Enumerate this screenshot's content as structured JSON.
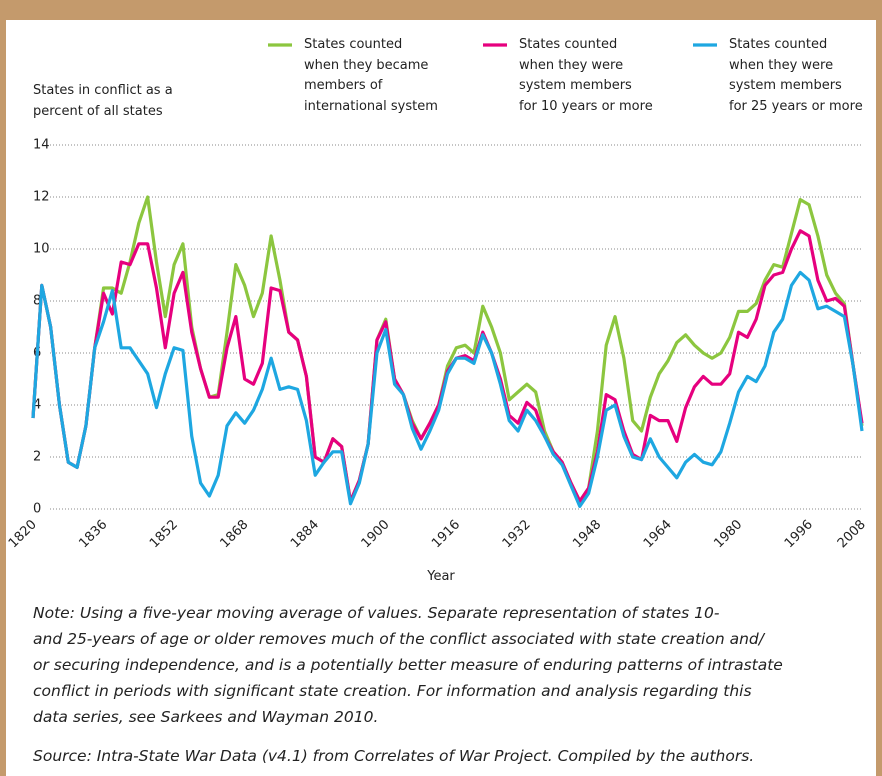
{
  "chart_data": {
    "type": "line",
    "y_axis_label": "States in conflict as a\npercent of all states",
    "x_axis_label": "Year",
    "x": [
      1820,
      1822,
      1824,
      1826,
      1828,
      1830,
      1832,
      1834,
      1836,
      1838,
      1840,
      1842,
      1844,
      1846,
      1848,
      1850,
      1852,
      1854,
      1856,
      1858,
      1860,
      1862,
      1864,
      1866,
      1868,
      1870,
      1872,
      1874,
      1876,
      1878,
      1880,
      1882,
      1884,
      1886,
      1888,
      1890,
      1892,
      1894,
      1896,
      1898,
      1900,
      1902,
      1904,
      1906,
      1908,
      1910,
      1912,
      1914,
      1916,
      1918,
      1920,
      1922,
      1924,
      1926,
      1928,
      1930,
      1932,
      1934,
      1936,
      1938,
      1940,
      1942,
      1944,
      1946,
      1948,
      1950,
      1952,
      1954,
      1956,
      1958,
      1960,
      1962,
      1964,
      1966,
      1968,
      1970,
      1972,
      1974,
      1976,
      1978,
      1980,
      1982,
      1984,
      1986,
      1988,
      1990,
      1992,
      1994,
      1996,
      1998,
      2000,
      2002,
      2004,
      2006,
      2008
    ],
    "series": [
      {
        "name": "States counted\nwhen they became\nmembers of\ninternational system",
        "color": "#8cc63f",
        "values": [
          3.5,
          8.6,
          7.0,
          4.0,
          1.8,
          1.6,
          3.2,
          6.2,
          8.5,
          8.5,
          8.3,
          9.5,
          11,
          12,
          9.5,
          7.4,
          9.4,
          10.2,
          7,
          5.4,
          4.3,
          4.4,
          6.8,
          9.4,
          8.6,
          7.4,
          8.3,
          10.5,
          8.8,
          6.8,
          6.5,
          5.1,
          2,
          1.8,
          2.7,
          2.4,
          0.3,
          1.1,
          2.5,
          6.5,
          7.3,
          5,
          4.4,
          3.4,
          2.7,
          3.3,
          4,
          5.5,
          6.2,
          6.3,
          6,
          7.8,
          7,
          6,
          4.2,
          4.5,
          4.8,
          4.5,
          3,
          2.2,
          1.8,
          1,
          0.3,
          0.8,
          3,
          6.3,
          7.4,
          5.8,
          3.4,
          3,
          4.3,
          5.2,
          5.7,
          6.4,
          6.7,
          6.3,
          6,
          5.8,
          6,
          6.6,
          7.6,
          7.6,
          7.9,
          8.8,
          9.4,
          9.3,
          10.6,
          11.9,
          11.7,
          10.5,
          9,
          8.3,
          7.9,
          5.5,
          3.2
        ]
      },
      {
        "name": "States counted\nwhen they were\nsystem members\nfor 10 years or more",
        "color": "#e6007e",
        "values": [
          3.5,
          8.6,
          7.0,
          4.0,
          1.8,
          1.6,
          3.2,
          6.2,
          8.3,
          7.5,
          9.5,
          9.4,
          10.2,
          10.2,
          8.5,
          6.2,
          8.3,
          9.1,
          6.8,
          5.4,
          4.3,
          4.3,
          6.2,
          7.4,
          5.0,
          4.8,
          5.6,
          8.5,
          8.4,
          6.8,
          6.5,
          5.1,
          2,
          1.8,
          2.7,
          2.4,
          0.3,
          1.1,
          2.5,
          6.5,
          7.2,
          5,
          4.4,
          3.3,
          2.7,
          3.3,
          4,
          5.3,
          5.8,
          5.9,
          5.7,
          6.8,
          6,
          5,
          3.6,
          3.3,
          4.1,
          3.8,
          2.8,
          2.2,
          1.8,
          1,
          0.3,
          0.8,
          2.2,
          4.4,
          4.2,
          3,
          2.1,
          1.9,
          3.6,
          3.4,
          3.4,
          2.6,
          3.9,
          4.7,
          5.1,
          4.8,
          4.8,
          5.2,
          6.8,
          6.6,
          7.3,
          8.6,
          9,
          9.1,
          10,
          10.7,
          10.5,
          8.8,
          8,
          8.1,
          7.8,
          5.5,
          3.3
        ]
      },
      {
        "name": "States counted\nwhen they were\nsystem members\nfor 25 years or more",
        "color": "#1ea7e1",
        "values": [
          3.5,
          8.6,
          7.0,
          4.0,
          1.8,
          1.6,
          3.2,
          6.2,
          7.2,
          8.4,
          6.2,
          6.2,
          5.7,
          5.2,
          3.9,
          5.2,
          6.2,
          6.1,
          2.8,
          1.0,
          0.5,
          1.3,
          3.2,
          3.7,
          3.3,
          3.8,
          4.6,
          5.8,
          4.6,
          4.7,
          4.6,
          3.4,
          1.3,
          1.8,
          2.2,
          2.2,
          0.2,
          1,
          2.5,
          6,
          6.9,
          4.8,
          4.4,
          3.1,
          2.3,
          3,
          3.8,
          5.2,
          5.8,
          5.8,
          5.6,
          6.7,
          6,
          4.8,
          3.4,
          3,
          3.8,
          3.4,
          2.8,
          2.1,
          1.7,
          0.9,
          0.1,
          0.6,
          2,
          3.8,
          4,
          2.8,
          2,
          1.9,
          2.7,
          2,
          1.6,
          1.2,
          1.8,
          2.1,
          1.8,
          1.7,
          2.2,
          3.3,
          4.5,
          5.1,
          4.9,
          5.5,
          6.8,
          7.3,
          8.6,
          9.1,
          8.8,
          7.7,
          7.8,
          7.6,
          7.4,
          5.5,
          3
        ]
      }
    ],
    "xlim": [
      1820,
      2008
    ],
    "xticks": [
      1820,
      1836,
      1852,
      1868,
      1884,
      1900,
      1916,
      1932,
      1948,
      1964,
      1980,
      1996,
      2008
    ],
    "ylim": [
      0,
      14
    ],
    "yticks": [
      0,
      2,
      4,
      6,
      8,
      10,
      12,
      14
    ],
    "grid": true,
    "note": "Note: Using a five-year moving average of values. Separate representation of states 10-\nand 25-years of age or older removes much of the conflict associated with state creation and/\nor securing independence, and is a potentially better measure of enduring patterns of intrastate\nconflict in periods with significant state creation. For information and analysis regarding this\ndata series, see Sarkees and Wayman 2010.",
    "source": "Source: Intra-State War Data (v4.1) from Correlates of War Project. Compiled by the authors."
  }
}
